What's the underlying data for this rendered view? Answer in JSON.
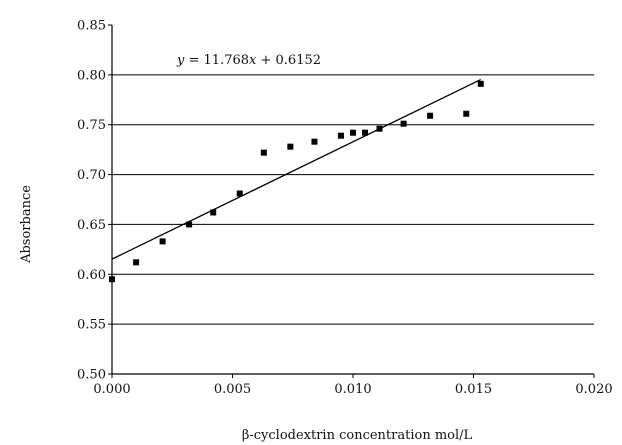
{
  "chart_data": {
    "type": "scatter",
    "xlabel": "β-cyclodextrin concentration mol/L",
    "ylabel": "Absorbance",
    "xlim": [
      0,
      0.02
    ],
    "ylim": [
      0.5,
      0.85
    ],
    "x_ticks": [
      "0.000",
      "0.005",
      "0.010",
      "0.015",
      "0.020"
    ],
    "y_ticks": [
      "0.50",
      "0.55",
      "0.60",
      "0.65",
      "0.70",
      "0.75",
      "0.80",
      "0.85"
    ],
    "grid": "horizontal",
    "points": [
      {
        "x": 0.0,
        "y": 0.595
      },
      {
        "x": 0.001,
        "y": 0.612
      },
      {
        "x": 0.0021,
        "y": 0.633
      },
      {
        "x": 0.0032,
        "y": 0.65
      },
      {
        "x": 0.0042,
        "y": 0.662
      },
      {
        "x": 0.0053,
        "y": 0.681
      },
      {
        "x": 0.0063,
        "y": 0.722
      },
      {
        "x": 0.0074,
        "y": 0.728
      },
      {
        "x": 0.0084,
        "y": 0.733
      },
      {
        "x": 0.0095,
        "y": 0.739
      },
      {
        "x": 0.01,
        "y": 0.742
      },
      {
        "x": 0.0105,
        "y": 0.742
      },
      {
        "x": 0.0111,
        "y": 0.746
      },
      {
        "x": 0.0121,
        "y": 0.751
      },
      {
        "x": 0.0132,
        "y": 0.759
      },
      {
        "x": 0.0147,
        "y": 0.761
      },
      {
        "x": 0.0153,
        "y": 0.791
      }
    ],
    "fit": {
      "slope": 11.768,
      "intercept": 0.6152,
      "x_range": [
        0,
        0.0153
      ]
    },
    "equation": {
      "lhs": "y",
      "middle": " = 11.768",
      "var": "x",
      "rhs": " + 0.6152"
    }
  }
}
